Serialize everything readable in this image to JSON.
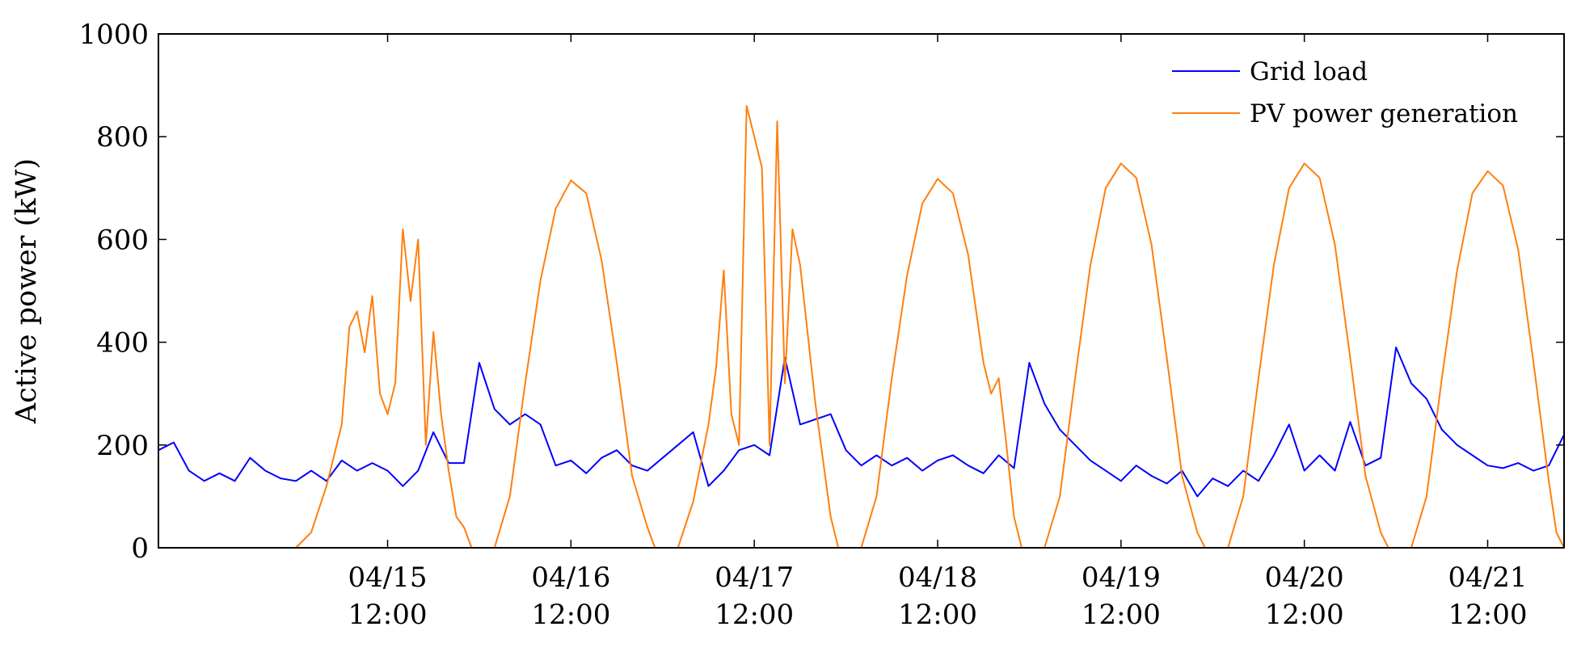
{
  "chart_data": {
    "type": "line",
    "title": "",
    "xlabel": "",
    "ylabel": "Active power (kW)",
    "ylim": [
      0,
      1000
    ],
    "yticks": [
      0,
      200,
      400,
      600,
      800,
      1000
    ],
    "xlim": [
      "04/14 06:00",
      "04/21 22:00"
    ],
    "xticks": [
      {
        "date": "04/15",
        "time": "12:00"
      },
      {
        "date": "04/16",
        "time": "12:00"
      },
      {
        "date": "04/17",
        "time": "12:00"
      },
      {
        "date": "04/18",
        "time": "12:00"
      },
      {
        "date": "04/19",
        "time": "12:00"
      },
      {
        "date": "04/20",
        "time": "12:00"
      },
      {
        "date": "04/21",
        "time": "12:00"
      }
    ],
    "grid": false,
    "legend_position": "top-right",
    "series": [
      {
        "name": "Grid load",
        "color": "#0000ff",
        "points": [
          [
            "04/14 06:00",
            190
          ],
          [
            "04/14 08:00",
            205
          ],
          [
            "04/14 10:00",
            150
          ],
          [
            "04/14 12:00",
            130
          ],
          [
            "04/14 14:00",
            145
          ],
          [
            "04/14 16:00",
            130
          ],
          [
            "04/14 18:00",
            175
          ],
          [
            "04/14 20:00",
            150
          ],
          [
            "04/14 22:00",
            135
          ],
          [
            "04/15 00:00",
            130
          ],
          [
            "04/15 02:00",
            150
          ],
          [
            "04/15 04:00",
            130
          ],
          [
            "04/15 06:00",
            170
          ],
          [
            "04/15 08:00",
            150
          ],
          [
            "04/15 10:00",
            165
          ],
          [
            "04/15 12:00",
            150
          ],
          [
            "04/15 14:00",
            120
          ],
          [
            "04/15 16:00",
            150
          ],
          [
            "04/15 18:00",
            225
          ],
          [
            "04/15 20:00",
            165
          ],
          [
            "04/15 22:00",
            165
          ],
          [
            "04/16 00:00",
            360
          ],
          [
            "04/16 02:00",
            270
          ],
          [
            "04/16 04:00",
            240
          ],
          [
            "04/16 06:00",
            260
          ],
          [
            "04/16 08:00",
            240
          ],
          [
            "04/16 10:00",
            160
          ],
          [
            "04/16 12:00",
            170
          ],
          [
            "04/16 14:00",
            145
          ],
          [
            "04/16 16:00",
            175
          ],
          [
            "04/16 18:00",
            190
          ],
          [
            "04/16 20:00",
            160
          ],
          [
            "04/16 22:00",
            150
          ],
          [
            "04/17 00:00",
            175
          ],
          [
            "04/17 02:00",
            200
          ],
          [
            "04/17 04:00",
            225
          ],
          [
            "04/17 06:00",
            120
          ],
          [
            "04/17 08:00",
            150
          ],
          [
            "04/17 10:00",
            190
          ],
          [
            "04/17 12:00",
            200
          ],
          [
            "04/17 14:00",
            180
          ],
          [
            "04/17 16:00",
            370
          ],
          [
            "04/17 18:00",
            240
          ],
          [
            "04/17 20:00",
            250
          ],
          [
            "04/17 22:00",
            260
          ],
          [
            "04/18 00:00",
            190
          ],
          [
            "04/18 02:00",
            160
          ],
          [
            "04/18 04:00",
            180
          ],
          [
            "04/18 06:00",
            160
          ],
          [
            "04/18 08:00",
            175
          ],
          [
            "04/18 10:00",
            150
          ],
          [
            "04/18 12:00",
            170
          ],
          [
            "04/18 14:00",
            180
          ],
          [
            "04/18 16:00",
            160
          ],
          [
            "04/18 18:00",
            145
          ],
          [
            "04/18 20:00",
            180
          ],
          [
            "04/18 22:00",
            155
          ],
          [
            "04/19 00:00",
            360
          ],
          [
            "04/19 02:00",
            280
          ],
          [
            "04/19 04:00",
            230
          ],
          [
            "04/19 06:00",
            200
          ],
          [
            "04/19 08:00",
            170
          ],
          [
            "04/19 10:00",
            150
          ],
          [
            "04/19 12:00",
            130
          ],
          [
            "04/19 14:00",
            160
          ],
          [
            "04/19 16:00",
            140
          ],
          [
            "04/19 18:00",
            125
          ],
          [
            "04/19 20:00",
            150
          ],
          [
            "04/19 22:00",
            100
          ],
          [
            "04/20 00:00",
            135
          ],
          [
            "04/20 02:00",
            120
          ],
          [
            "04/20 04:00",
            150
          ],
          [
            "04/20 06:00",
            130
          ],
          [
            "04/20 08:00",
            180
          ],
          [
            "04/20 10:00",
            240
          ],
          [
            "04/20 12:00",
            150
          ],
          [
            "04/20 14:00",
            180
          ],
          [
            "04/20 16:00",
            150
          ],
          [
            "04/20 18:00",
            245
          ],
          [
            "04/20 20:00",
            160
          ],
          [
            "04/20 22:00",
            175
          ],
          [
            "04/21 00:00",
            390
          ],
          [
            "04/21 02:00",
            320
          ],
          [
            "04/21 04:00",
            290
          ],
          [
            "04/21 06:00",
            230
          ],
          [
            "04/21 08:00",
            200
          ],
          [
            "04/21 10:00",
            180
          ],
          [
            "04/21 12:00",
            160
          ],
          [
            "04/21 14:00",
            155
          ],
          [
            "04/21 16:00",
            165
          ],
          [
            "04/21 18:00",
            150
          ],
          [
            "04/21 20:00",
            160
          ],
          [
            "04/21 22:00",
            220
          ]
        ]
      },
      {
        "name": "PV power generation",
        "color": "#ff7f0e",
        "points": [
          [
            "04/14 06:00",
            0
          ],
          [
            "04/15 00:00",
            0
          ],
          [
            "04/15 02:00",
            30
          ],
          [
            "04/15 04:00",
            120
          ],
          [
            "04/15 06:00",
            240
          ],
          [
            "04/15 07:00",
            430
          ],
          [
            "04/15 08:00",
            460
          ],
          [
            "04/15 09:00",
            380
          ],
          [
            "04/15 10:00",
            490
          ],
          [
            "04/15 11:00",
            300
          ],
          [
            "04/15 12:00",
            260
          ],
          [
            "04/15 13:00",
            320
          ],
          [
            "04/15 14:00",
            620
          ],
          [
            "04/15 15:00",
            480
          ],
          [
            "04/15 16:00",
            600
          ],
          [
            "04/15 17:00",
            200
          ],
          [
            "04/15 18:00",
            420
          ],
          [
            "04/15 19:00",
            260
          ],
          [
            "04/15 20:00",
            150
          ],
          [
            "04/15 21:00",
            60
          ],
          [
            "04/15 22:00",
            40
          ],
          [
            "04/15 23:00",
            0
          ],
          [
            "04/16 02:00",
            0
          ],
          [
            "04/16 04:00",
            100
          ],
          [
            "04/16 06:00",
            320
          ],
          [
            "04/16 08:00",
            520
          ],
          [
            "04/16 10:00",
            660
          ],
          [
            "04/16 12:00",
            715
          ],
          [
            "04/16 14:00",
            690
          ],
          [
            "04/16 16:00",
            560
          ],
          [
            "04/16 18:00",
            360
          ],
          [
            "04/16 20:00",
            140
          ],
          [
            "04/16 22:00",
            40
          ],
          [
            "04/16 23:00",
            0
          ],
          [
            "04/17 02:00",
            0
          ],
          [
            "04/17 04:00",
            90
          ],
          [
            "04/17 06:00",
            240
          ],
          [
            "04/17 07:00",
            350
          ],
          [
            "04/17 08:00",
            540
          ],
          [
            "04/17 09:00",
            260
          ],
          [
            "04/17 10:00",
            200
          ],
          [
            "04/17 11:00",
            860
          ],
          [
            "04/17 12:00",
            800
          ],
          [
            "04/17 13:00",
            740
          ],
          [
            "04/17 14:00",
            200
          ],
          [
            "04/17 15:00",
            830
          ],
          [
            "04/17 16:00",
            320
          ],
          [
            "04/17 17:00",
            620
          ],
          [
            "04/17 18:00",
            550
          ],
          [
            "04/17 20:00",
            280
          ],
          [
            "04/17 22:00",
            60
          ],
          [
            "04/17 23:00",
            0
          ],
          [
            "04/18 02:00",
            0
          ],
          [
            "04/18 04:00",
            100
          ],
          [
            "04/18 06:00",
            330
          ],
          [
            "04/18 08:00",
            530
          ],
          [
            "04/18 10:00",
            670
          ],
          [
            "04/18 12:00",
            718
          ],
          [
            "04/18 14:00",
            690
          ],
          [
            "04/18 16:00",
            570
          ],
          [
            "04/18 18:00",
            360
          ],
          [
            "04/18 19:00",
            300
          ],
          [
            "04/18 20:00",
            330
          ],
          [
            "04/18 21:00",
            200
          ],
          [
            "04/18 22:00",
            60
          ],
          [
            "04/18 23:00",
            0
          ],
          [
            "04/19 02:00",
            0
          ],
          [
            "04/19 04:00",
            100
          ],
          [
            "04/19 06:00",
            330
          ],
          [
            "04/19 08:00",
            550
          ],
          [
            "04/19 10:00",
            700
          ],
          [
            "04/19 12:00",
            748
          ],
          [
            "04/19 14:00",
            720
          ],
          [
            "04/19 16:00",
            590
          ],
          [
            "04/19 18:00",
            370
          ],
          [
            "04/19 20:00",
            140
          ],
          [
            "04/19 22:00",
            30
          ],
          [
            "04/19 23:00",
            0
          ],
          [
            "04/20 02:00",
            0
          ],
          [
            "04/20 04:00",
            100
          ],
          [
            "04/20 06:00",
            330
          ],
          [
            "04/20 08:00",
            550
          ],
          [
            "04/20 10:00",
            700
          ],
          [
            "04/20 12:00",
            748
          ],
          [
            "04/20 14:00",
            720
          ],
          [
            "04/20 16:00",
            590
          ],
          [
            "04/20 18:00",
            370
          ],
          [
            "04/20 20:00",
            140
          ],
          [
            "04/20 22:00",
            30
          ],
          [
            "04/20 23:00",
            0
          ],
          [
            "04/21 02:00",
            0
          ],
          [
            "04/21 04:00",
            100
          ],
          [
            "04/21 06:00",
            330
          ],
          [
            "04/21 08:00",
            540
          ],
          [
            "04/21 10:00",
            690
          ],
          [
            "04/21 12:00",
            733
          ],
          [
            "04/21 14:00",
            705
          ],
          [
            "04/21 16:00",
            580
          ],
          [
            "04/21 18:00",
            360
          ],
          [
            "04/21 20:00",
            130
          ],
          [
            "04/21 21:00",
            30
          ],
          [
            "04/21 22:00",
            0
          ]
        ]
      }
    ]
  }
}
